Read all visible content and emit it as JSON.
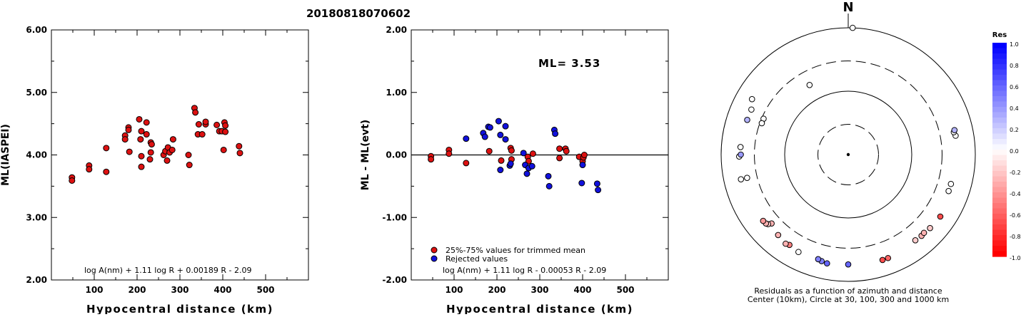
{
  "page_title": "20180818070602",
  "chart_data": [
    {
      "type": "scatter",
      "title": "",
      "xlabel": "Hypocentral distance (km)",
      "ylabel": "ML(IASPEI)",
      "xlim": [
        0,
        600
      ],
      "ylim": [
        2.0,
        6.0
      ],
      "x_ticks": [
        "100",
        "200",
        "300",
        "400",
        "500"
      ],
      "y_ticks": [
        "2.00",
        "3.00",
        "4.00",
        "5.00",
        "6.00"
      ],
      "formula": "log A(nm) + 1.11 log R + 0.00189 R - 2.09",
      "series": [
        {
          "color": "#dd1111",
          "points": [
            [
              48,
              3.64
            ],
            [
              48,
              3.59
            ],
            [
              88,
              3.83
            ],
            [
              88,
              3.77
            ],
            [
              128,
              3.73
            ],
            [
              128,
              4.11
            ],
            [
              172,
              4.31
            ],
            [
              172,
              4.25
            ],
            [
              180,
              4.44
            ],
            [
              180,
              4.4
            ],
            [
              182,
              4.05
            ],
            [
              205,
              4.57
            ],
            [
              208,
              4.25
            ],
            [
              210,
              4.38
            ],
            [
              210,
              3.98
            ],
            [
              210,
              3.81
            ],
            [
              222,
              4.52
            ],
            [
              222,
              4.33
            ],
            [
              230,
              3.93
            ],
            [
              232,
              4.2
            ],
            [
              232,
              4.04
            ],
            [
              234,
              4.17
            ],
            [
              262,
              4.0
            ],
            [
              266,
              4.06
            ],
            [
              270,
              3.91
            ],
            [
              272,
              4.12
            ],
            [
              276,
              4.04
            ],
            [
              282,
              4.08
            ],
            [
              284,
              4.25
            ],
            [
              320,
              4.0
            ],
            [
              322,
              3.84
            ],
            [
              334,
              4.75
            ],
            [
              336,
              4.68
            ],
            [
              342,
              4.33
            ],
            [
              344,
              4.49
            ],
            [
              352,
              4.33
            ],
            [
              360,
              4.49
            ],
            [
              360,
              4.53
            ],
            [
              386,
              4.48
            ],
            [
              392,
              4.38
            ],
            [
              398,
              4.38
            ],
            [
              402,
              4.08
            ],
            [
              404,
              4.52
            ],
            [
              406,
              4.47
            ],
            [
              406,
              4.37
            ],
            [
              438,
              4.14
            ],
            [
              440,
              4.03
            ]
          ]
        }
      ]
    },
    {
      "type": "scatter",
      "title": "",
      "xlabel": "Hypocentral distance (km)",
      "ylabel": "ML - ML(evt)",
      "xlim": [
        0,
        600
      ],
      "ylim": [
        -2.0,
        2.0
      ],
      "x_ticks": [
        "100",
        "200",
        "300",
        "400",
        "500"
      ],
      "y_ticks": [
        "-2.00",
        "-1.00",
        "0.00",
        "1.00",
        "2.00"
      ],
      "annotation": "ML= 3.53",
      "formula": "log A(nm) + 1.11 log R - 0.00053 R - 2.09",
      "reference_line": 0.0,
      "legend_position": "bottom-left",
      "series": [
        {
          "name": "25%-75% values for trimmed mean",
          "color": "#dd1111",
          "points": [
            [
              46,
              -0.02
            ],
            [
              46,
              -0.07
            ],
            [
              88,
              0.08
            ],
            [
              88,
              0.02
            ],
            [
              128,
              -0.13
            ],
            [
              182,
              0.06
            ],
            [
              210,
              -0.09
            ],
            [
              232,
              0.11
            ],
            [
              234,
              0.07
            ],
            [
              234,
              -0.07
            ],
            [
              272,
              -0.03
            ],
            [
              274,
              -0.1
            ],
            [
              284,
              0.02
            ],
            [
              346,
              0.1
            ],
            [
              346,
              -0.05
            ],
            [
              360,
              0.1
            ],
            [
              362,
              0.06
            ],
            [
              392,
              -0.03
            ],
            [
              400,
              -0.1
            ],
            [
              402,
              -0.04
            ],
            [
              404,
              0.0
            ]
          ]
        },
        {
          "name": "Rejected values",
          "color": "#1111dd",
          "points": [
            [
              128,
              0.26
            ],
            [
              168,
              0.35
            ],
            [
              172,
              0.29
            ],
            [
              180,
              0.45
            ],
            [
              184,
              0.44
            ],
            [
              204,
              0.54
            ],
            [
              208,
              0.32
            ],
            [
              208,
              -0.24
            ],
            [
              220,
              0.46
            ],
            [
              220,
              0.25
            ],
            [
              230,
              -0.17
            ],
            [
              232,
              -0.14
            ],
            [
              262,
              0.03
            ],
            [
              266,
              -0.16
            ],
            [
              270,
              -0.3
            ],
            [
              274,
              -0.21
            ],
            [
              282,
              -0.18
            ],
            [
              320,
              -0.34
            ],
            [
              322,
              -0.5
            ],
            [
              334,
              0.4
            ],
            [
              336,
              0.34
            ],
            [
              398,
              -0.45
            ],
            [
              400,
              -0.16
            ],
            [
              434,
              -0.46
            ],
            [
              436,
              -0.56
            ]
          ]
        }
      ]
    },
    {
      "type": "polar-scatter",
      "title": "N",
      "caption_line1": "Residuals as a function of azimuth and distance",
      "caption_line2": "Center (10km), Circle at 30, 100, 300 and 1000 km",
      "colorbar_title": "Res",
      "colorbar_ticks": [
        "1.0",
        "0.8",
        "0.6",
        "0.4",
        "0.2",
        "0.0",
        "-0.2",
        "-0.4",
        "-0.6",
        "-0.8",
        "-1.0"
      ],
      "circles_km": [
        30,
        100,
        300,
        1000
      ],
      "stations": [
        {
          "azimuth_deg": 2,
          "distance_km": 1000,
          "residual": 0.0
        },
        {
          "azimuth_deg": 295,
          "distance_km": 480,
          "residual": 0.0
        },
        {
          "azimuth_deg": 300,
          "distance_km": 560,
          "residual": 0.0
        },
        {
          "azimuth_deg": 289,
          "distance_km": 480,
          "residual": 0.3
        },
        {
          "azimuth_deg": 293,
          "distance_km": 280,
          "residual": 0.0
        },
        {
          "azimuth_deg": 290,
          "distance_km": 280,
          "residual": 0.0
        },
        {
          "azimuth_deg": 257,
          "distance_km": 430,
          "residual": 0.0
        },
        {
          "azimuth_deg": 331,
          "distance_km": 180,
          "residual": 0.0
        },
        {
          "azimuth_deg": 274,
          "distance_km": 500,
          "residual": 0.0
        },
        {
          "azimuth_deg": 269,
          "distance_km": 520,
          "residual": 0.0
        },
        {
          "azimuth_deg": 270,
          "distance_km": 490,
          "residual": 0.4
        },
        {
          "azimuth_deg": 257,
          "distance_km": 540,
          "residual": 0.0
        },
        {
          "azimuth_deg": 228,
          "distance_km": 420,
          "residual": -0.3
        },
        {
          "azimuth_deg": 229,
          "distance_km": 470,
          "residual": -0.2
        },
        {
          "azimuth_deg": 230,
          "distance_km": 490,
          "residual": -0.3
        },
        {
          "azimuth_deg": 232,
          "distance_km": 500,
          "residual": -0.4
        },
        {
          "azimuth_deg": 221,
          "distance_km": 480,
          "residual": -0.3
        },
        {
          "azimuth_deg": 213,
          "distance_km": 500,
          "residual": -0.5
        },
        {
          "azimuth_deg": 215,
          "distance_km": 520,
          "residual": -0.3
        },
        {
          "azimuth_deg": 207,
          "distance_km": 530,
          "residual": 0.0
        },
        {
          "azimuth_deg": 194,
          "distance_km": 540,
          "residual": 0.5
        },
        {
          "azimuth_deg": 196,
          "distance_km": 520,
          "residual": 0.5
        },
        {
          "azimuth_deg": 191,
          "distance_km": 560,
          "residual": 0.6
        },
        {
          "azimuth_deg": 180,
          "distance_km": 540,
          "residual": 0.6
        },
        {
          "azimuth_deg": 162,
          "distance_km": 560,
          "residual": -0.7
        },
        {
          "azimuth_deg": 159,
          "distance_km": 560,
          "residual": -0.6
        },
        {
          "azimuth_deg": 142,
          "distance_km": 520,
          "residual": -0.2
        },
        {
          "azimuth_deg": 138,
          "distance_km": 530,
          "residual": -0.3
        },
        {
          "azimuth_deg": 136,
          "distance_km": 520,
          "residual": -0.3
        },
        {
          "azimuth_deg": 132,
          "distance_km": 540,
          "residual": -0.2
        },
        {
          "azimuth_deg": 124,
          "distance_km": 560,
          "residual": -0.7
        },
        {
          "azimuth_deg": 110,
          "distance_km": 480,
          "residual": 0.0
        },
        {
          "azimuth_deg": 106,
          "distance_km": 480,
          "residual": 0.0
        },
        {
          "azimuth_deg": 80,
          "distance_km": 520,
          "residual": 0.0
        },
        {
          "azimuth_deg": 78,
          "distance_km": 500,
          "residual": 0.0
        },
        {
          "azimuth_deg": 77,
          "distance_km": 520,
          "residual": 0.3
        }
      ]
    }
  ]
}
